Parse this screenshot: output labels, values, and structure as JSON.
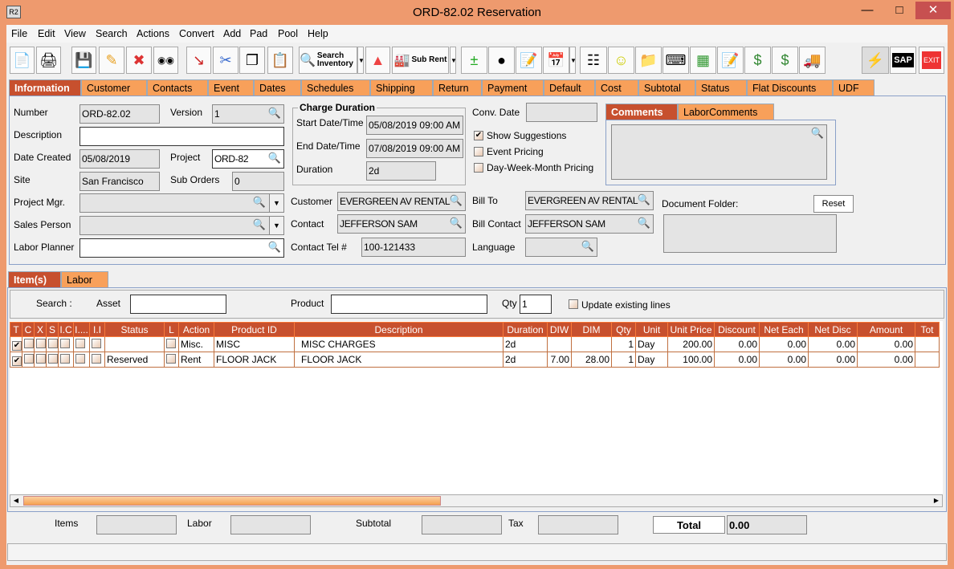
{
  "window": {
    "title": "ORD-82.02 Reservation",
    "app_icon": "R2"
  },
  "menu": [
    "File",
    "Edit",
    "View",
    "Search",
    "Actions",
    "Convert",
    "Add",
    "Pad",
    "Pool",
    "Help"
  ],
  "toolbar": {
    "search_inventory": "Search Inventory",
    "sub_rent": "Sub Rent",
    "sap": "SAP",
    "exit": "EXIT"
  },
  "info_tabs": [
    "Information",
    "Customer",
    "Contacts",
    "Event",
    "Dates",
    "Schedules",
    "Shipping",
    "Return",
    "Payment",
    "Default",
    "Cost",
    "Subtotal",
    "Status",
    "Flat Discounts",
    "UDF"
  ],
  "form": {
    "number_label": "Number",
    "number": "ORD-82.02",
    "version_label": "Version",
    "version": "1",
    "description_label": "Description",
    "description": "",
    "date_created_label": "Date Created",
    "date_created": "05/08/2019",
    "project_label": "Project",
    "project": "ORD-82",
    "site_label": "Site",
    "site": "San Francisco",
    "sub_orders_label": "Sub Orders",
    "sub_orders": "0",
    "project_mgr_label": "Project Mgr.",
    "project_mgr": "",
    "sales_person_label": "Sales Person",
    "sales_person": "",
    "labor_planner_label": "Labor Planner",
    "labor_planner": "",
    "charge_duration_title": "Charge Duration",
    "start_label": "Start Date/Time",
    "start": "05/08/2019 09:00 AM",
    "end_label": "End Date/Time",
    "end": "07/08/2019 09:00 AM",
    "duration_label": "Duration",
    "duration": "2d",
    "conv_date_label": "Conv. Date",
    "conv_date": "",
    "show_suggestions": "Show Suggestions",
    "event_pricing": "Event Pricing",
    "dwm_pricing": "Day-Week-Month Pricing",
    "customer_label": "Customer",
    "customer": "EVERGREEN AV RENTALS",
    "contact_label": "Contact",
    "contact": "JEFFERSON SAM",
    "contact_tel_label": "Contact Tel #",
    "contact_tel": "100-121433",
    "bill_to_label": "Bill To",
    "bill_to": "EVERGREEN AV RENTALS",
    "bill_contact_label": "Bill Contact",
    "bill_contact": "JEFFERSON SAM",
    "language_label": "Language",
    "language": "",
    "comments_tabs": [
      "Comments",
      "LaborComments"
    ],
    "document_folder_label": "Document Folder:",
    "reset": "Reset"
  },
  "item_tabs": [
    "Item(s)",
    "Labor"
  ],
  "search": {
    "search_label": "Search :",
    "asset_label": "Asset",
    "product_label": "Product",
    "qty_label": "Qty",
    "qty": "1",
    "update_existing": "Update existing lines"
  },
  "grid": {
    "columns": [
      "T",
      "C",
      "X",
      "S",
      "I.C",
      "I....",
      "I.I",
      "Status",
      "L",
      "Action",
      "Product ID",
      "Description",
      "Duration",
      "DIW",
      "DIM",
      "Qty",
      "Unit",
      "Unit Price",
      "Discount",
      "Net Each",
      "Net Disc",
      "Amount",
      "Tot"
    ],
    "rows": [
      {
        "T": true,
        "status": "",
        "action": "Misc.",
        "product_id": "MISC",
        "description": "MISC CHARGES",
        "duration": "2d",
        "diw": "",
        "dim": "",
        "qty": "1",
        "unit": "Day",
        "unit_price": "200.00",
        "discount": "0.00",
        "net_each": "0.00",
        "net_disc": "0.00",
        "amount": "0.00"
      },
      {
        "T": true,
        "status": "Reserved",
        "action": "Rent",
        "product_id": "FLOOR JACK",
        "description": "FLOOR JACK",
        "duration": "2d",
        "diw": "7.00",
        "dim": "28.00",
        "qty": "1",
        "unit": "Day",
        "unit_price": "100.00",
        "discount": "0.00",
        "net_each": "0.00",
        "net_disc": "0.00",
        "amount": "0.00"
      }
    ]
  },
  "totals": {
    "items_label": "Items",
    "labor_label": "Labor",
    "subtotal_label": "Subtotal",
    "tax_label": "Tax",
    "total_label": "Total",
    "total": "0.00"
  }
}
